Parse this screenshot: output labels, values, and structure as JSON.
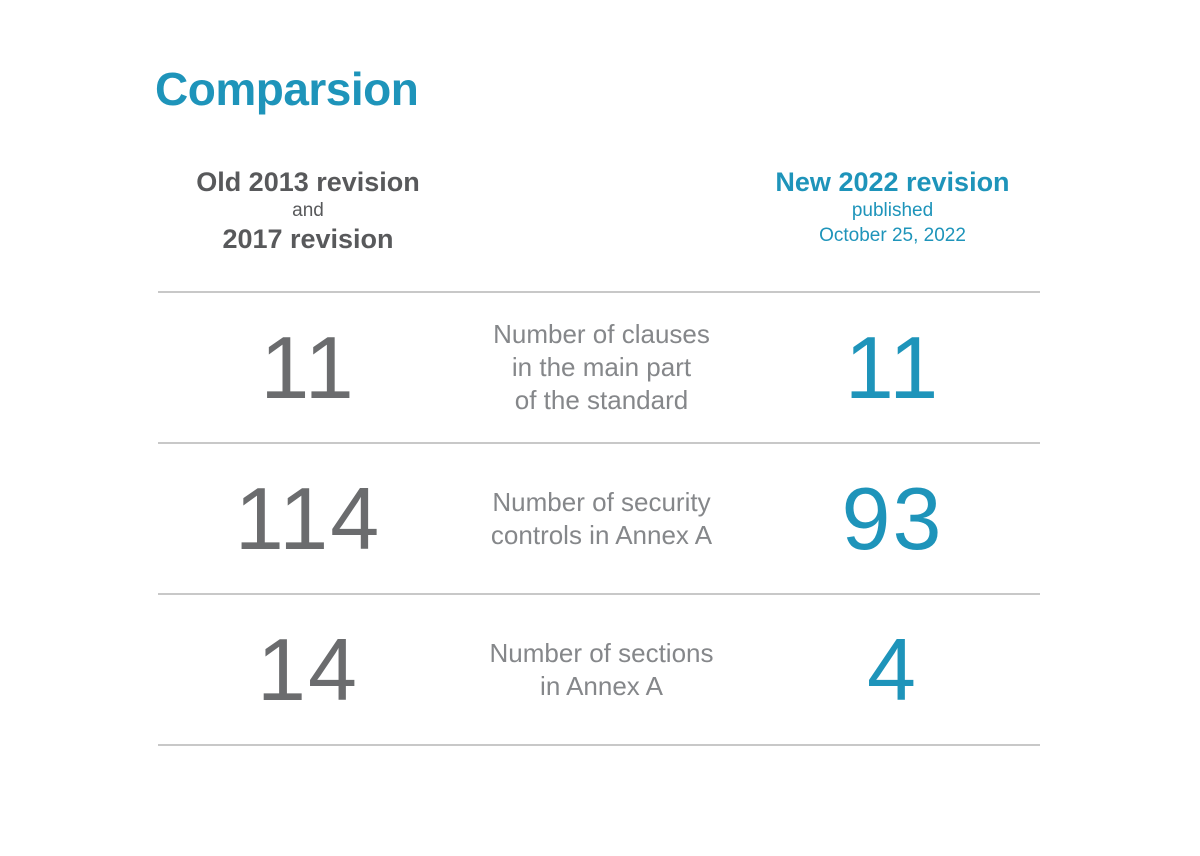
{
  "page": {
    "title": "Comparsion"
  },
  "colors": {
    "accent_teal": "#1E94BA",
    "heading_gray": "#58595B",
    "number_gray": "#6B6C6E",
    "label_gray": "#85878A",
    "divider_gray": "#C8C8C8",
    "page_bg": "#FFFFFF"
  },
  "table": {
    "old_header": {
      "title": "Old 2013 revision",
      "connector": "and",
      "second_title": "2017 revision"
    },
    "new_header": {
      "title": "New 2022 revision",
      "published_label": "published",
      "published_date": "October 25, 2022"
    },
    "rows": [
      {
        "old_value": "11",
        "label": "Number of clauses\nin the main part\nof the standard",
        "new_value": "11"
      },
      {
        "old_value": "114",
        "label": "Number of security\ncontrols in Annex A",
        "new_value": "93"
      },
      {
        "old_value": "14",
        "label": "Number of sections\nin Annex A",
        "new_value": "4"
      }
    ]
  }
}
